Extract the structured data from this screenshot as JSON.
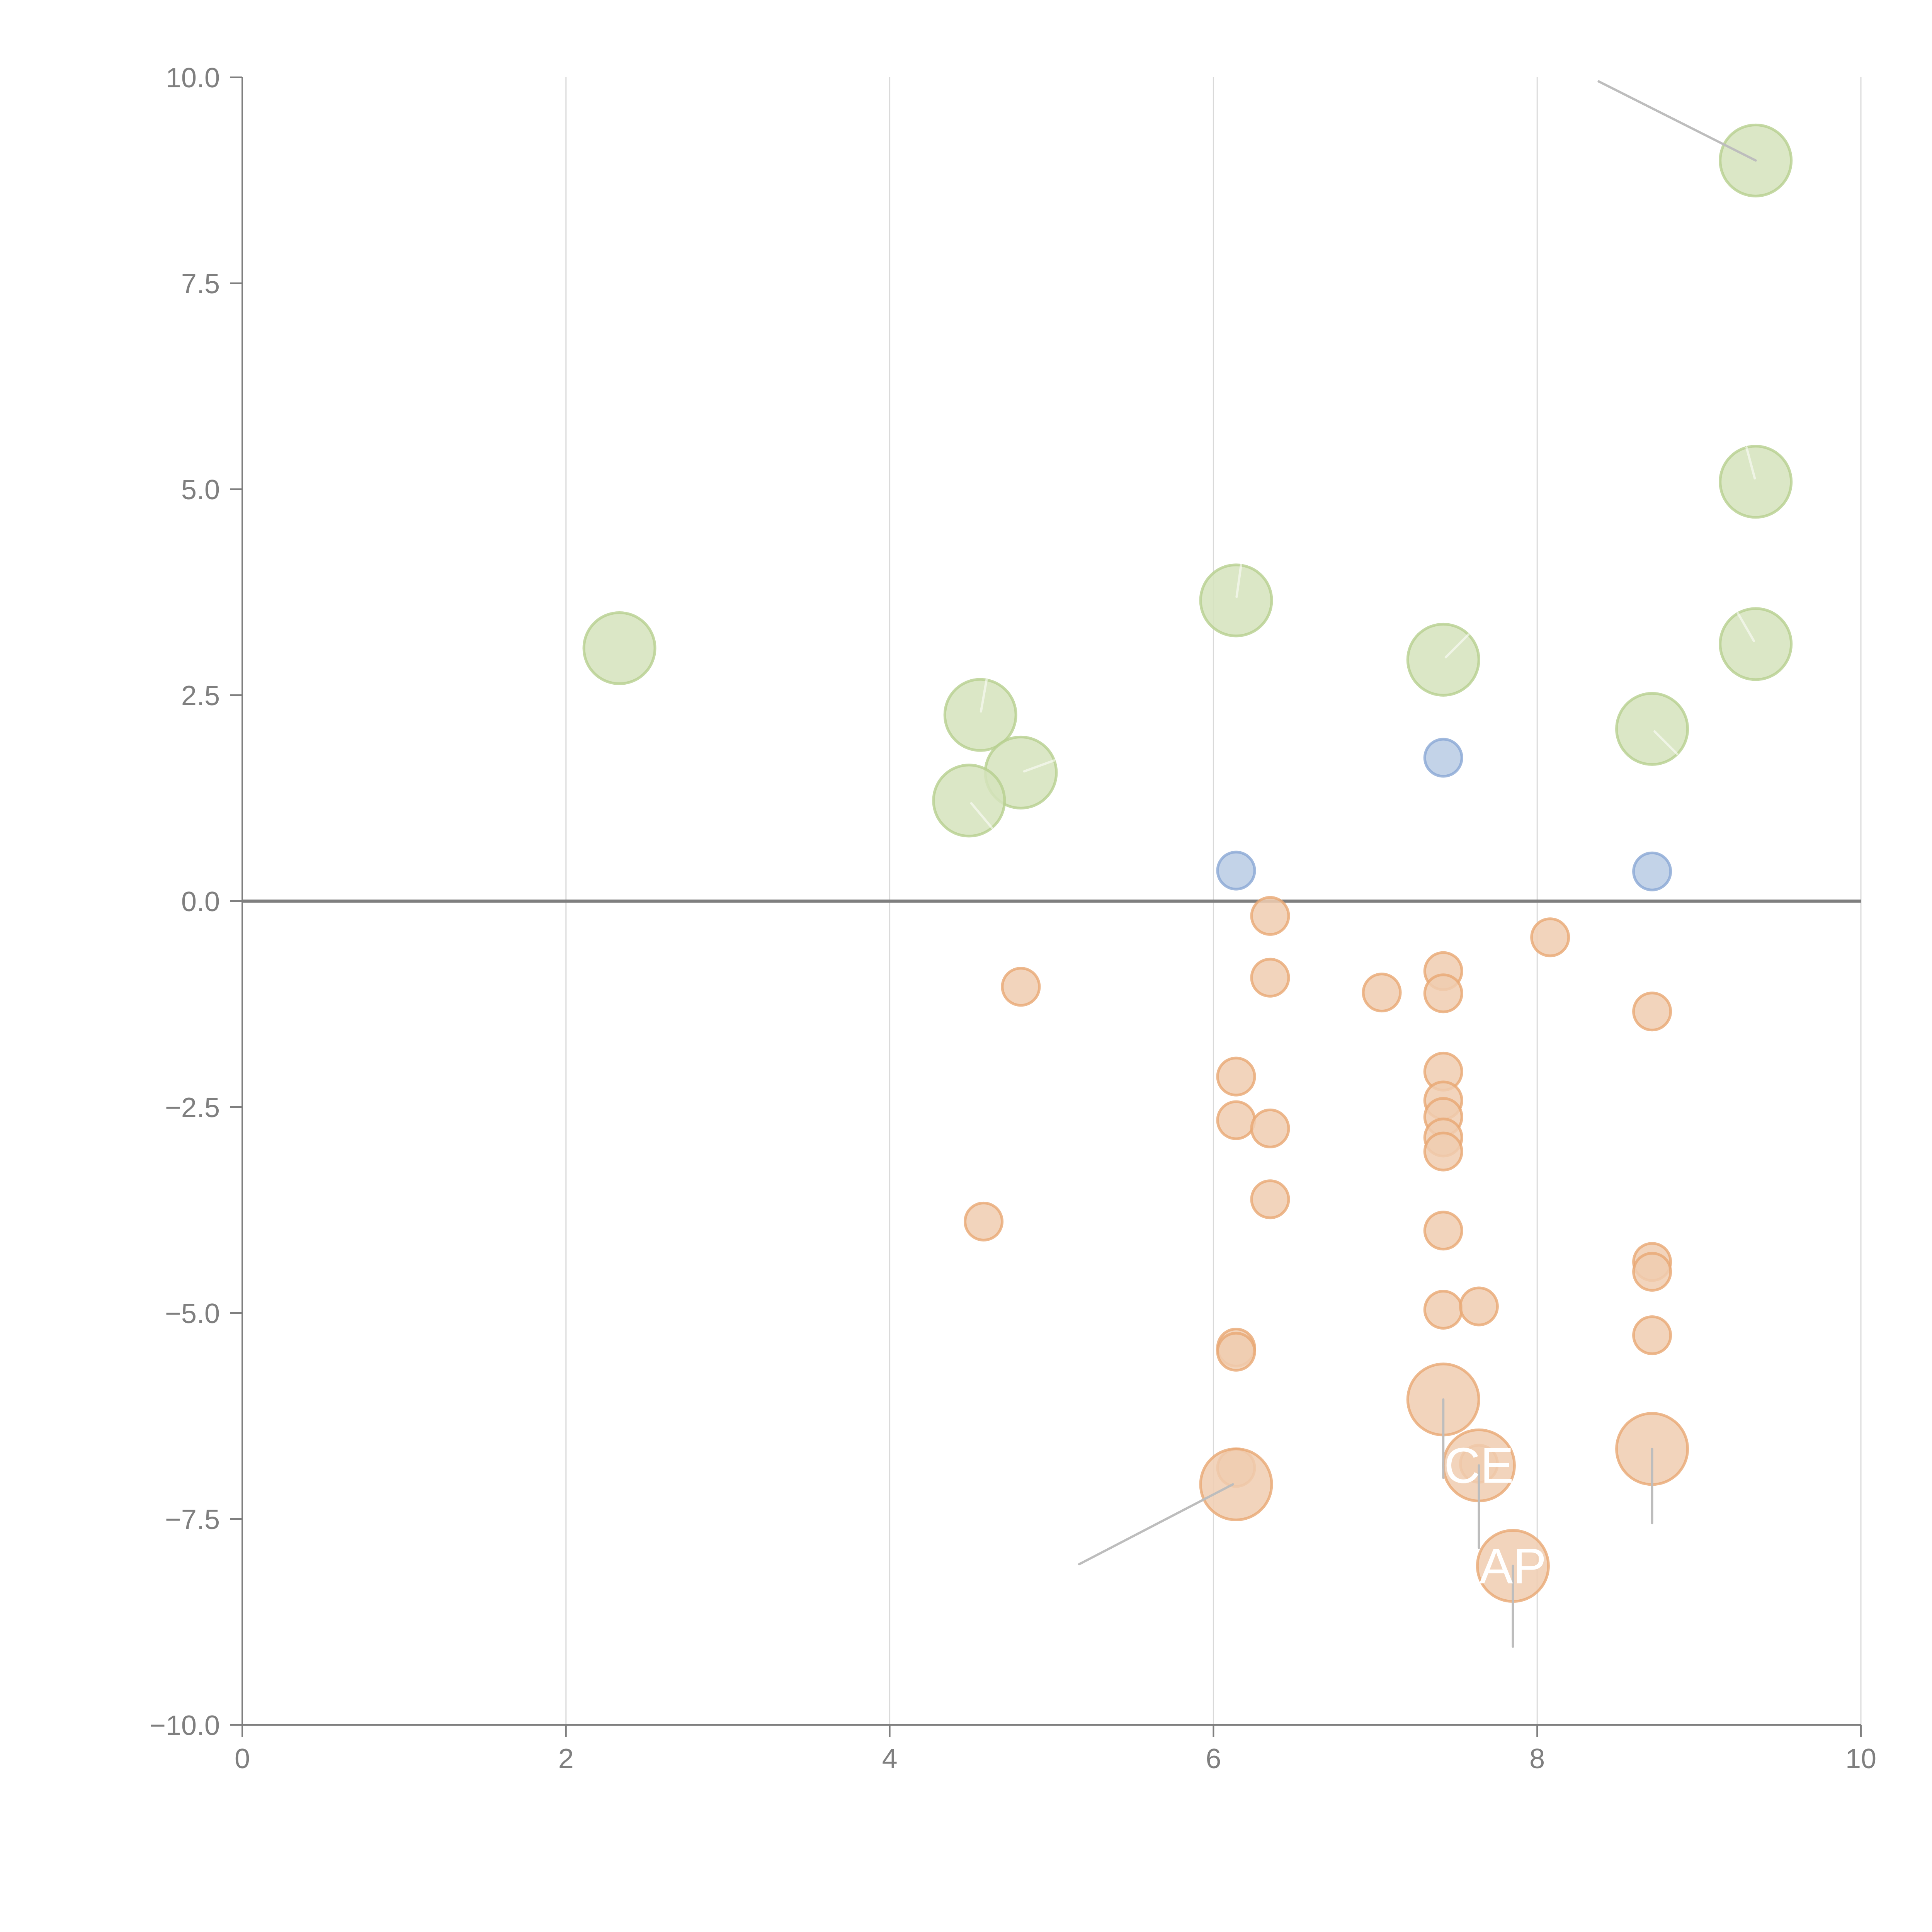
{
  "chart_data": {
    "type": "scatter",
    "title": "",
    "xlabel": "",
    "ylabel": "",
    "xlim": [
      0,
      10
    ],
    "ylim": [
      -10,
      10
    ],
    "x_ticks": [
      0,
      2,
      4,
      6,
      8,
      10
    ],
    "x_tick_labels": [
      "0",
      "2",
      "4",
      "6",
      "8",
      "10"
    ],
    "y_ticks": [
      10,
      7.5,
      5,
      2.5,
      0,
      -2.5,
      -5,
      -7.5,
      -10
    ],
    "y_tick_labels": [
      "10.0",
      "7.5",
      "5.0",
      "2.5",
      "0.0",
      "−2.5",
      "−5.0",
      "−7.5",
      "−10.0"
    ],
    "grid": "vertical",
    "reference_line_y": 0,
    "legend": "none",
    "series": [
      {
        "name": "green",
        "color_fill": "#d5e3bc",
        "color_stroke": "#b7d08f",
        "size": "large",
        "points": [
          {
            "x": 2.33,
            "y": 3.07
          },
          {
            "x": 4.56,
            "y": 2.26,
            "tick_angle": -80
          },
          {
            "x": 4.81,
            "y": 1.56,
            "tick_angle": -20
          },
          {
            "x": 4.49,
            "y": 1.22,
            "tick_angle": 50
          },
          {
            "x": 6.14,
            "y": 3.65,
            "tick_angle": -82
          },
          {
            "x": 7.42,
            "y": 2.93,
            "tick_angle": -45
          },
          {
            "x": 8.71,
            "y": 2.09,
            "tick_angle": 45
          },
          {
            "x": 9.35,
            "y": 5.09,
            "tick_angle": -105
          },
          {
            "x": 9.35,
            "y": 3.12,
            "tick_angle": -120
          },
          {
            "x": 9.35,
            "y": 8.99,
            "leader_to": [
              8.38,
              9.95
            ]
          }
        ]
      },
      {
        "name": "blue",
        "color_fill": "#b8cbe4",
        "color_stroke": "#89a8d4",
        "size": "small",
        "points": [
          {
            "x": 6.14,
            "y": 0.37
          },
          {
            "x": 7.42,
            "y": 1.74
          },
          {
            "x": 8.71,
            "y": 0.36
          }
        ]
      },
      {
        "name": "orange",
        "color_fill": "#f0cdb0",
        "color_stroke": "#e8a873",
        "size": "mixed",
        "points": [
          {
            "x": 6.35,
            "y": -0.18,
            "r": "small"
          },
          {
            "x": 6.35,
            "y": -0.93,
            "r": "small"
          },
          {
            "x": 4.81,
            "y": -1.04,
            "r": "small"
          },
          {
            "x": 7.04,
            "y": -1.11,
            "r": "small"
          },
          {
            "x": 7.42,
            "y": -0.85,
            "r": "small"
          },
          {
            "x": 7.42,
            "y": -1.12,
            "r": "small"
          },
          {
            "x": 8.08,
            "y": -0.44,
            "r": "small"
          },
          {
            "x": 8.71,
            "y": -1.34,
            "r": "small"
          },
          {
            "x": 6.14,
            "y": -2.13,
            "r": "small"
          },
          {
            "x": 6.14,
            "y": -2.66,
            "r": "small"
          },
          {
            "x": 6.35,
            "y": -2.76,
            "r": "small"
          },
          {
            "x": 6.35,
            "y": -3.62,
            "r": "small"
          },
          {
            "x": 7.42,
            "y": -2.07,
            "r": "small"
          },
          {
            "x": 7.42,
            "y": -2.42,
            "r": "small"
          },
          {
            "x": 7.42,
            "y": -2.62,
            "r": "small"
          },
          {
            "x": 7.42,
            "y": -2.87,
            "r": "small"
          },
          {
            "x": 7.42,
            "y": -3.04,
            "r": "small"
          },
          {
            "x": 4.58,
            "y": -3.89,
            "r": "small"
          },
          {
            "x": 7.42,
            "y": -4.0,
            "r": "small"
          },
          {
            "x": 7.42,
            "y": -4.96,
            "r": "small"
          },
          {
            "x": 7.64,
            "y": -4.92,
            "r": "small"
          },
          {
            "x": 8.71,
            "y": -4.38,
            "r": "small"
          },
          {
            "x": 8.71,
            "y": -4.5,
            "r": "small"
          },
          {
            "x": 8.71,
            "y": -5.27,
            "r": "small"
          },
          {
            "x": 6.14,
            "y": -5.42,
            "r": "small"
          },
          {
            "x": 6.14,
            "y": -5.47,
            "r": "small"
          },
          {
            "x": 6.14,
            "y": -6.88,
            "r": "small"
          },
          {
            "x": 7.64,
            "y": -6.83,
            "r": "small"
          },
          {
            "x": 7.42,
            "y": -6.05,
            "r": "large",
            "leader_to": [
              7.42,
              -7.0
            ]
          },
          {
            "x": 8.71,
            "y": -6.65,
            "r": "large",
            "leader_to": [
              8.71,
              -7.55
            ]
          },
          {
            "x": 6.14,
            "y": -7.08,
            "r": "large",
            "leader_to": [
              5.17,
              -8.05
            ],
            "leader_from": [
              6.12,
              -7.08
            ]
          },
          {
            "x": 7.64,
            "y": -6.85,
            "r": "large",
            "leader_to": [
              7.64,
              -7.85
            ],
            "label": "CE"
          },
          {
            "x": 7.85,
            "y": -8.07,
            "r": "large",
            "leader_to": [
              7.85,
              -9.05
            ],
            "label": "AP"
          }
        ]
      }
    ],
    "annotations": [
      "CE",
      "AP"
    ]
  }
}
